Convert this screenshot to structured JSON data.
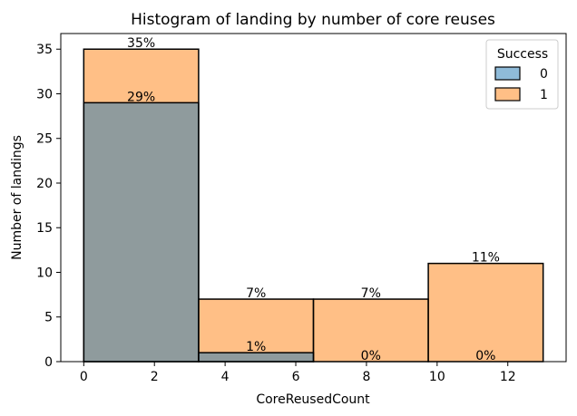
{
  "chart_data": {
    "type": "bar",
    "title": "Histogram of landing by number of core reuses",
    "xlabel": "CoreReusedCount",
    "ylabel": "Number of landings",
    "xlim": [
      -0.65,
      13.65
    ],
    "ylim": [
      0,
      36.75
    ],
    "xticks": [
      0,
      2,
      4,
      6,
      8,
      10,
      12
    ],
    "yticks": [
      0,
      5,
      10,
      15,
      20,
      25,
      30,
      35
    ],
    "bins": [
      {
        "x0": 0,
        "x1": 3.25
      },
      {
        "x0": 3.25,
        "x1": 6.5
      },
      {
        "x0": 6.5,
        "x1": 9.75
      },
      {
        "x0": 9.75,
        "x1": 13
      }
    ],
    "series": [
      {
        "name": "0",
        "color": "#1f77b4",
        "values": [
          29,
          1,
          0,
          0
        ],
        "labels": [
          "29%",
          "1%",
          "0%",
          "0%"
        ]
      },
      {
        "name": "1",
        "color": "#ff7f0e",
        "values": [
          35,
          7,
          7,
          11
        ],
        "labels": [
          "35%",
          "7%",
          "7%",
          "11%"
        ]
      }
    ],
    "legend": {
      "title": "Success",
      "position": "top-right",
      "entries": [
        "0",
        "1"
      ]
    },
    "grid": false
  }
}
